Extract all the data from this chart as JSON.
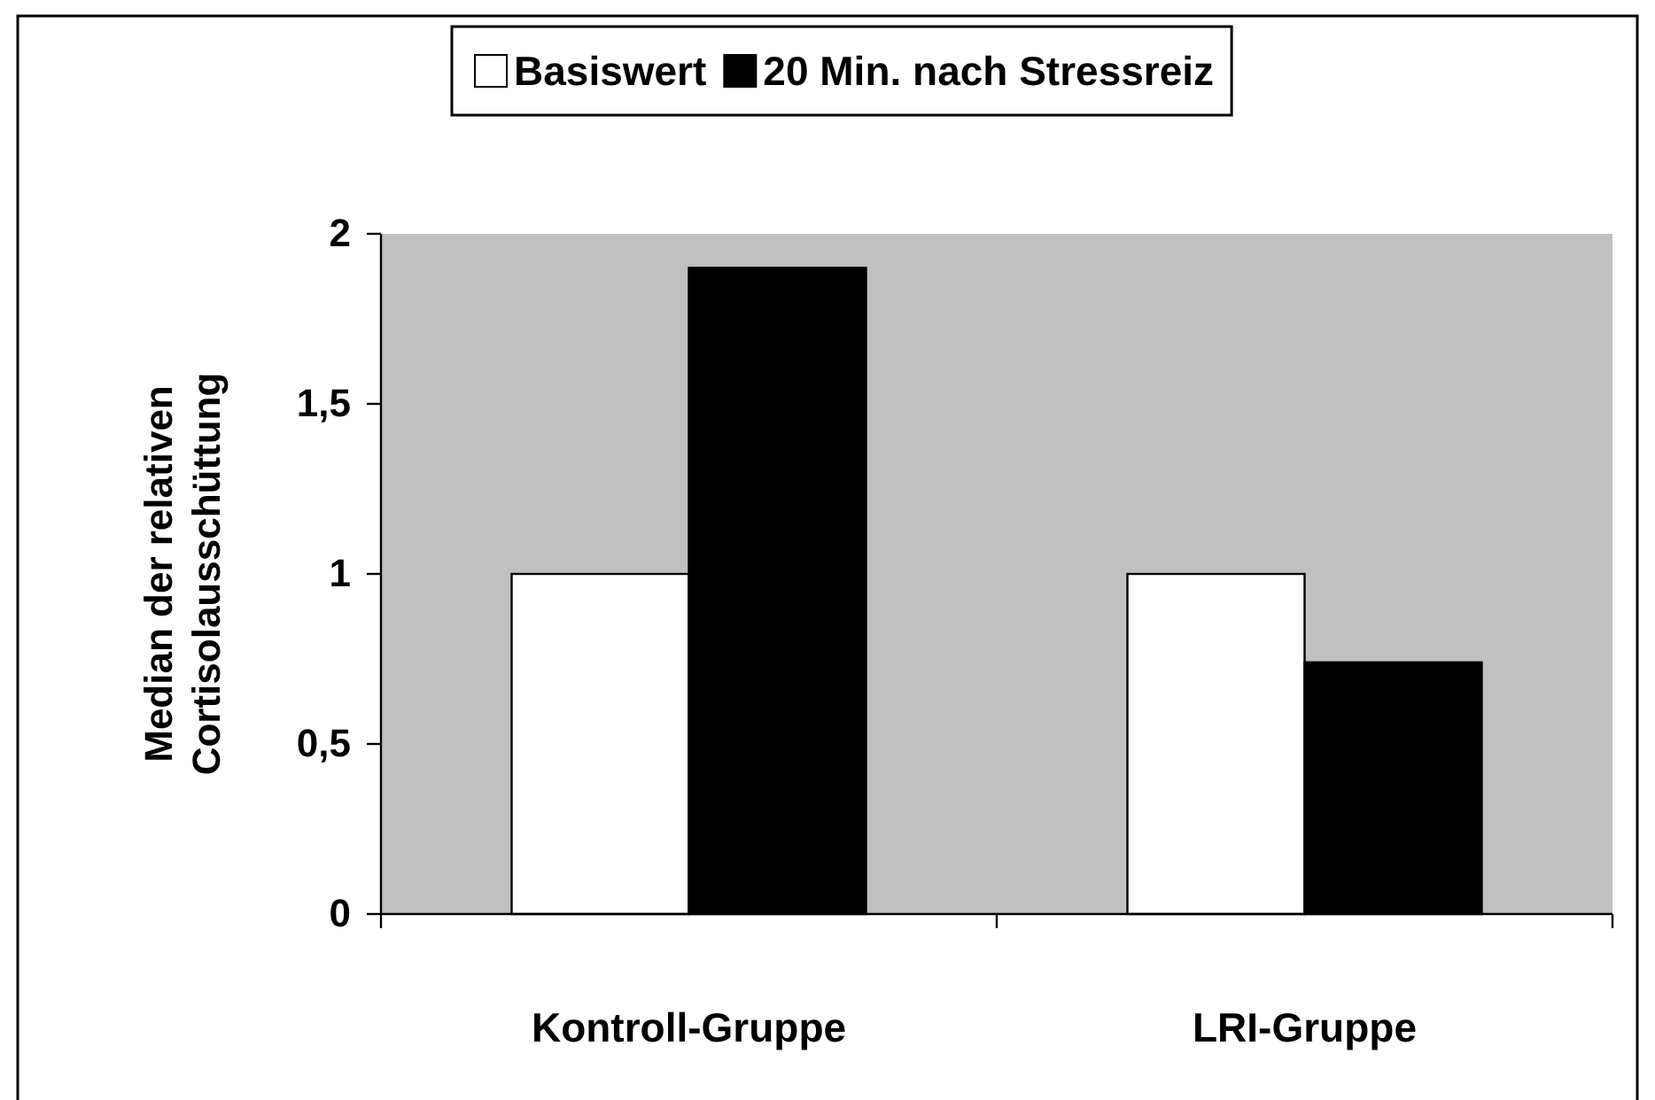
{
  "chart_data": {
    "type": "bar",
    "ylabel": "Median der relativen Cortisolausschüttung",
    "categories": [
      "Kontroll-Gruppe",
      "LRI-Gruppe"
    ],
    "series": [
      {
        "name": "Basiswert",
        "color": "#ffffff",
        "values": [
          1,
          1
        ]
      },
      {
        "name": "20 Min. nach Stressreiz",
        "color": "#000000",
        "values": [
          1.9,
          0.74
        ]
      }
    ],
    "ylim": [
      0,
      2
    ],
    "yticks": [
      0,
      {
        "value": 0.5,
        "label": "0,5"
      },
      1,
      {
        "value": 1.5,
        "label": "1,5"
      },
      2
    ],
    "grid": false,
    "legend": "top"
  }
}
